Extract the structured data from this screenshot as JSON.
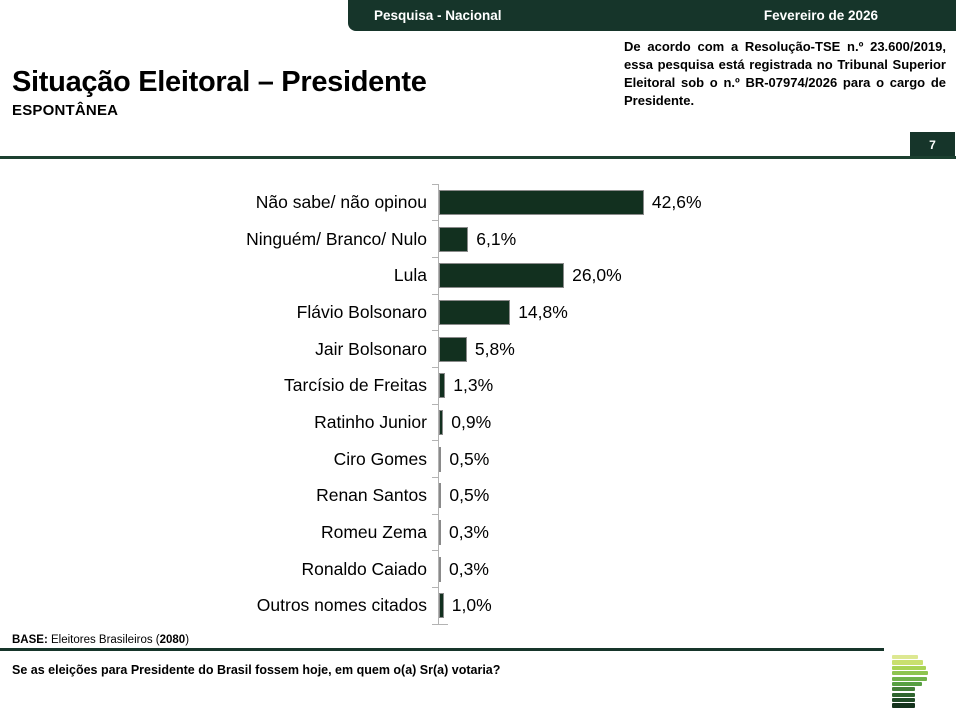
{
  "header": {
    "left_label": "Pesquisa - Nacional",
    "right_label": "Fevereiro de 2026"
  },
  "title": "Situação Eleitoral – Presidente",
  "subtitle": "ESPONTÂNEA",
  "disclaimer": "De acordo com a Resolução-TSE n.º 23.600/2019, essa pesquisa está registrada no Tribunal Superior Eleitoral sob o n.º BR-07974/2026 para o cargo de Presidente.",
  "page_number": "7",
  "chart_data": {
    "type": "bar",
    "orientation": "horizontal",
    "title": "",
    "categories": [
      "Não sabe/ não opinou",
      "Ninguém/ Branco/ Nulo",
      "Lula",
      "Flávio Bolsonaro",
      "Jair Bolsonaro",
      "Tarcísio de Freitas",
      "Ratinho Junior",
      "Ciro Gomes",
      "Renan Santos",
      "Romeu Zema",
      "Ronaldo Caiado",
      "Outros nomes citados"
    ],
    "values": [
      42.6,
      6.1,
      26.0,
      14.8,
      5.8,
      1.3,
      0.9,
      0.5,
      0.5,
      0.3,
      0.3,
      1.0
    ],
    "value_labels": [
      "42,6%",
      "6,1%",
      "26,0%",
      "14,8%",
      "5,8%",
      "1,3%",
      "0,9%",
      "0,5%",
      "0,5%",
      "0,3%",
      "0,3%",
      "1,0%"
    ],
    "xlim": [
      0,
      50
    ],
    "bar_color": "#12301f",
    "axis_color": "#b3b3b3",
    "grid": false,
    "legend": false,
    "data_labels": true
  },
  "base": {
    "label": "BASE:",
    "text": " Eleitores Brasileiros (",
    "count": "2080",
    "suffix": ")"
  },
  "question": "Se as eleições para Presidente do Brasil fossem hoje, em quem o(a) Sr(a) votaria?",
  "colors": {
    "brand_dark_green": "#16352a",
    "divider_green": "#1c4030",
    "bar_green": "#12301f"
  },
  "logo": {
    "name": "stacked-green-bars-logo",
    "bars": [
      {
        "width": 26,
        "color": "#dde892"
      },
      {
        "width": 31,
        "color": "#c9e06e"
      },
      {
        "width": 34,
        "color": "#a8d355"
      },
      {
        "width": 36,
        "color": "#8dc44f"
      },
      {
        "width": 35,
        "color": "#70b24a"
      },
      {
        "width": 30,
        "color": "#579f42"
      },
      {
        "width": 23,
        "color": "#437f38"
      },
      {
        "width": 23,
        "color": "#30652f"
      },
      {
        "width": 23,
        "color": "#204b26"
      },
      {
        "width": 23,
        "color": "#15331d"
      }
    ]
  }
}
